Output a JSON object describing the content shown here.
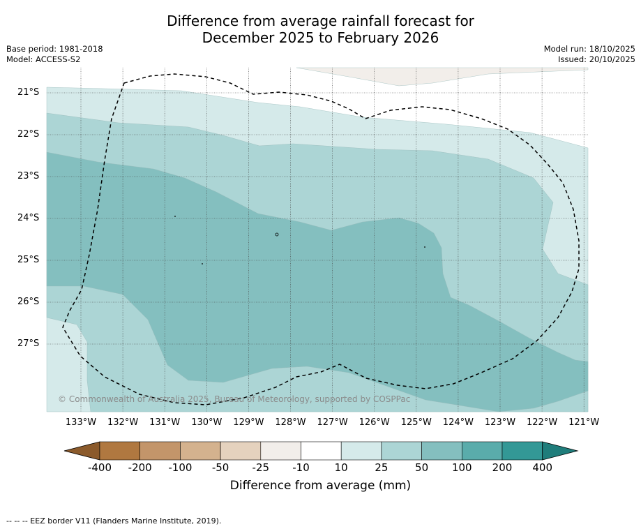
{
  "title": {
    "line1": "Difference from average rainfall forecast for",
    "line2": "December 2025 to February 2026"
  },
  "meta_left": {
    "base_period": "Base period: 1981-2018",
    "model": "Model: ACCESS-S2"
  },
  "meta_right": {
    "model_run": "Model run: 18/10/2025",
    "issued": "Issued: 20/10/2025"
  },
  "map": {
    "latitude_labels": [
      "21°S",
      "22°S",
      "23°S",
      "24°S",
      "25°S",
      "26°S",
      "27°S"
    ],
    "longitude_labels": [
      "133°W",
      "132°W",
      "131°W",
      "130°W",
      "129°W",
      "128°W",
      "127°W",
      "126°W",
      "125°W",
      "124°W",
      "123°W",
      "122°W",
      "121°W"
    ],
    "copyright": "© Commonwealth of Australia 2025, Bureau of Meteorology, supported by COSPPac"
  },
  "colorbar": {
    "ticks": [
      "-400",
      "-200",
      "-100",
      "-50",
      "-25",
      "-10",
      "10",
      "25",
      "50",
      "100",
      "200",
      "400"
    ],
    "colors": [
      "#8b5a2b",
      "#b07840",
      "#c3956a",
      "#d4b28e",
      "#e5d2be",
      "#f2eeea",
      "#ffffff",
      "#d5eaea",
      "#acd5d5",
      "#84bfbf",
      "#5aacab",
      "#339896",
      "#1f7d7b"
    ],
    "label": "Difference from average (mm)"
  },
  "colors": {
    "c_neg10": "#f2eeea",
    "c_25": "#d5eaea",
    "c_50": "#acd5d5",
    "c_100": "#84bfbf"
  },
  "footnote": "--  --  -- EEZ border V11 (Flanders Marine Institute, 2019)."
}
